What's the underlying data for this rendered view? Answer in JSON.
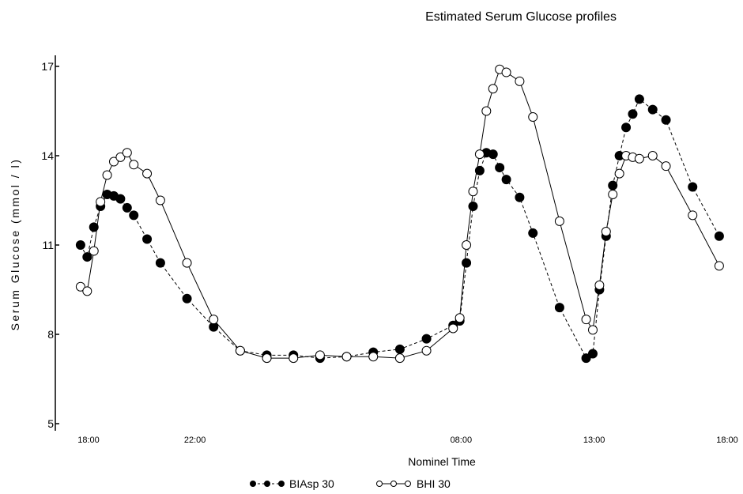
{
  "chart_data": {
    "type": "line",
    "title": "Estimated Serum Glucose profiles",
    "xlabel": "Nominel Time",
    "ylabel": "Serum Glucose  (mmol / l)",
    "ylim": [
      5,
      17
    ],
    "xlim": [
      17.5,
      42.2
    ],
    "y_ticks": [
      {
        "value": 5,
        "label": "5"
      },
      {
        "value": 8,
        "label": "8"
      },
      {
        "value": 11,
        "label": "11"
      },
      {
        "value": 14,
        "label": "14"
      },
      {
        "value": 17,
        "label": "17"
      }
    ],
    "x_ticks": [
      {
        "value": 18,
        "label": "18:00"
      },
      {
        "value": 22,
        "label": "22:00"
      },
      {
        "value": 32,
        "label": "08:00"
      },
      {
        "value": 37,
        "label": "13:00"
      },
      {
        "value": 42,
        "label": "18:00"
      }
    ],
    "grid": false,
    "legend_position": "bottom",
    "series": [
      {
        "name": "BIAsp 30",
        "marker": "filled-circle",
        "line_style": "dashed",
        "points": [
          [
            17.7,
            11.0
          ],
          [
            17.95,
            10.6
          ],
          [
            18.2,
            11.6
          ],
          [
            18.45,
            12.3
          ],
          [
            18.7,
            12.7
          ],
          [
            18.95,
            12.65
          ],
          [
            19.2,
            12.55
          ],
          [
            19.45,
            12.25
          ],
          [
            19.7,
            12.0
          ],
          [
            20.2,
            11.2
          ],
          [
            20.7,
            10.4
          ],
          [
            21.7,
            9.2
          ],
          [
            22.7,
            8.25
          ],
          [
            23.7,
            7.45
          ],
          [
            24.7,
            7.3
          ],
          [
            25.7,
            7.3
          ],
          [
            26.7,
            7.2
          ],
          [
            27.7,
            7.25
          ],
          [
            28.7,
            7.4
          ],
          [
            29.7,
            7.5
          ],
          [
            30.7,
            7.85
          ],
          [
            31.7,
            8.3
          ],
          [
            31.95,
            8.45
          ],
          [
            32.2,
            10.4
          ],
          [
            32.45,
            12.3
          ],
          [
            32.7,
            13.5
          ],
          [
            32.95,
            14.1
          ],
          [
            33.2,
            14.05
          ],
          [
            33.45,
            13.6
          ],
          [
            33.7,
            13.2
          ],
          [
            34.2,
            12.6
          ],
          [
            34.7,
            11.4
          ],
          [
            35.7,
            8.9
          ],
          [
            36.7,
            7.2
          ],
          [
            36.95,
            7.35
          ],
          [
            37.2,
            9.5
          ],
          [
            37.45,
            11.3
          ],
          [
            37.7,
            13.0
          ],
          [
            37.95,
            14.0
          ],
          [
            38.2,
            14.95
          ],
          [
            38.45,
            15.4
          ],
          [
            38.7,
            15.9
          ],
          [
            39.2,
            15.55
          ],
          [
            39.7,
            15.2
          ],
          [
            40.7,
            12.95
          ],
          [
            41.7,
            11.3
          ]
        ]
      },
      {
        "name": "BHI 30",
        "marker": "open-circle",
        "line_style": "solid",
        "points": [
          [
            17.7,
            9.6
          ],
          [
            17.95,
            9.45
          ],
          [
            18.2,
            10.8
          ],
          [
            18.45,
            12.45
          ],
          [
            18.7,
            13.35
          ],
          [
            18.95,
            13.8
          ],
          [
            19.2,
            13.95
          ],
          [
            19.45,
            14.1
          ],
          [
            19.7,
            13.7
          ],
          [
            20.2,
            13.4
          ],
          [
            20.7,
            12.5
          ],
          [
            21.7,
            10.4
          ],
          [
            22.7,
            8.5
          ],
          [
            23.7,
            7.45
          ],
          [
            24.7,
            7.2
          ],
          [
            25.7,
            7.2
          ],
          [
            26.7,
            7.3
          ],
          [
            27.7,
            7.25
          ],
          [
            28.7,
            7.25
          ],
          [
            29.7,
            7.2
          ],
          [
            30.7,
            7.45
          ],
          [
            31.7,
            8.2
          ],
          [
            31.95,
            8.55
          ],
          [
            32.2,
            11.0
          ],
          [
            32.45,
            12.8
          ],
          [
            32.7,
            14.05
          ],
          [
            32.95,
            15.5
          ],
          [
            33.2,
            16.25
          ],
          [
            33.45,
            16.9
          ],
          [
            33.7,
            16.8
          ],
          [
            34.2,
            16.5
          ],
          [
            34.7,
            15.3
          ],
          [
            35.7,
            11.8
          ],
          [
            36.7,
            8.5
          ],
          [
            36.95,
            8.15
          ],
          [
            37.2,
            9.65
          ],
          [
            37.45,
            11.45
          ],
          [
            37.7,
            12.7
          ],
          [
            37.95,
            13.4
          ],
          [
            38.2,
            14.0
          ],
          [
            38.45,
            13.95
          ],
          [
            38.7,
            13.9
          ],
          [
            39.2,
            14.0
          ],
          [
            39.7,
            13.65
          ],
          [
            40.7,
            12.0
          ],
          [
            41.7,
            10.3
          ]
        ]
      }
    ]
  }
}
